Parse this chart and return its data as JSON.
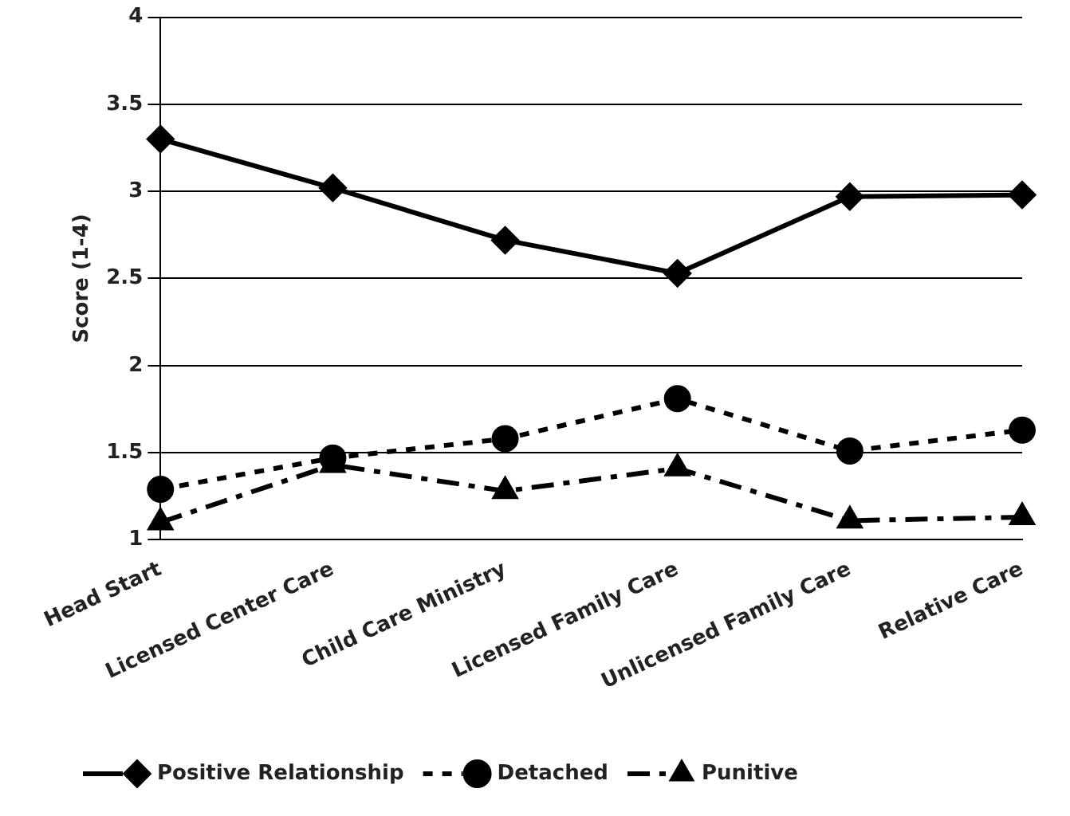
{
  "chart_data": {
    "type": "line",
    "ylabel": "Score (1-4)",
    "categories": [
      "Head Start",
      "Licensed Center Care",
      "Child Care Ministry",
      "Licensed Family Care",
      "Unlicensed Family Care",
      "Relative Care"
    ],
    "series": [
      {
        "name": "Positive Relationship",
        "color": "#000000",
        "marker": "diamond",
        "line_style": "solid",
        "values": [
          3.3,
          3.02,
          2.72,
          2.53,
          2.97,
          2.98
        ]
      },
      {
        "name": "Detached",
        "color": "#000000",
        "marker": "circle",
        "line_style": "dotted",
        "values": [
          1.29,
          1.47,
          1.58,
          1.81,
          1.51,
          1.63
        ]
      },
      {
        "name": "Punitive",
        "color": "#000000",
        "marker": "triangle",
        "line_style": "dashed",
        "values": [
          1.1,
          1.43,
          1.28,
          1.41,
          1.11,
          1.13
        ]
      }
    ],
    "ylim": [
      1,
      4
    ],
    "yticks": [
      1,
      1.5,
      2,
      2.5,
      3,
      3.5,
      4
    ],
    "grid": "y",
    "legend": "bottom"
  }
}
